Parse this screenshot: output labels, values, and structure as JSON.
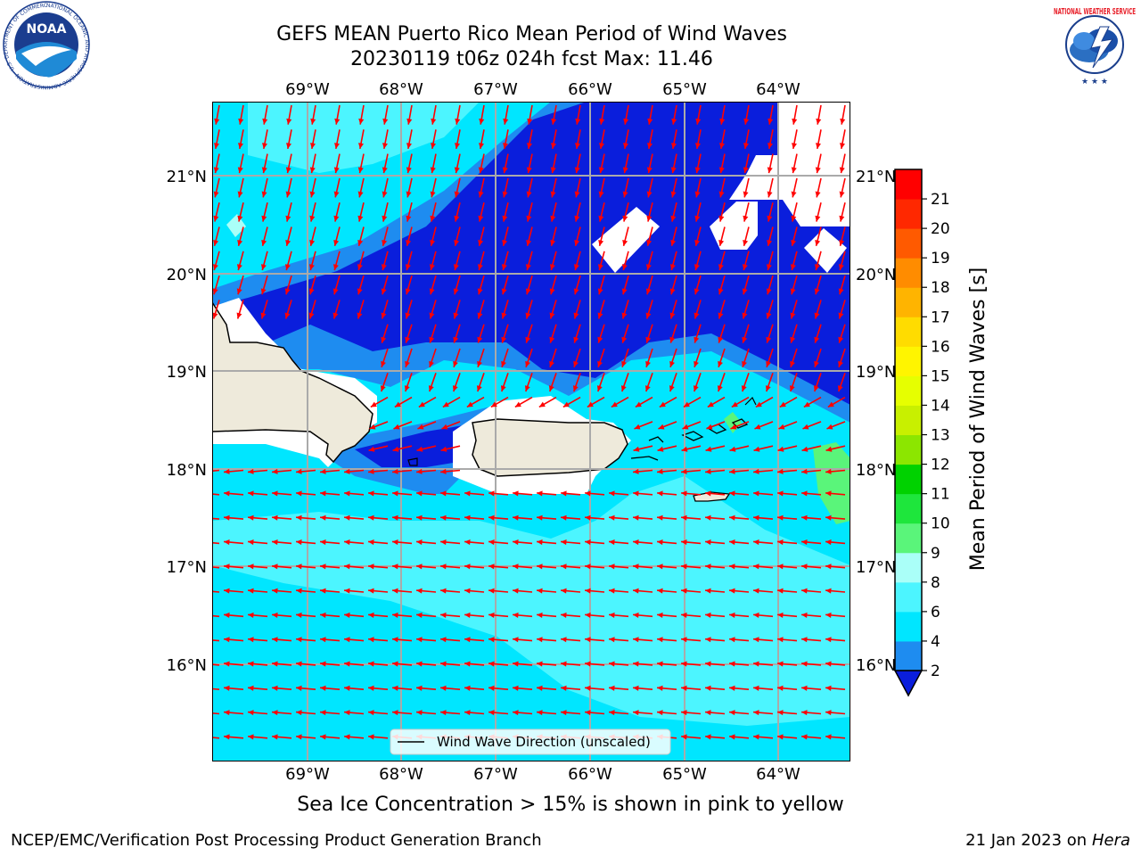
{
  "title": {
    "line1": "GEFS MEAN Puerto Rico Mean Period of Wind Waves",
    "line2": "20230119 t06z 024h fcst   Max: 11.46"
  },
  "map": {
    "lon_labels": [
      "69°W",
      "68°W",
      "67°W",
      "66°W",
      "65°W",
      "64°W"
    ],
    "lat_labels": [
      "21°N",
      "20°N",
      "19°N",
      "18°N",
      "17°N",
      "16°N"
    ],
    "legend_label": "Wind Wave Direction (unscaled)",
    "arrow_color": "#ff0000",
    "land_color": "#eeeadb",
    "islands": [
      "Hispaniola",
      "Puerto Rico",
      "Virgin Islands",
      "St. Croix"
    ]
  },
  "colorbar": {
    "label": "Mean Period of Wind Waves [s]",
    "ticks": [
      "2",
      "4",
      "6",
      "8",
      "9",
      "10",
      "11",
      "12",
      "13",
      "14",
      "15",
      "16",
      "17",
      "18",
      "19",
      "20",
      "21"
    ],
    "colors": [
      "#0a1edc",
      "#1e8cf0",
      "#00e6ff",
      "#4cf5ff",
      "#aafff8",
      "#5af57a",
      "#1ee63c",
      "#00d200",
      "#8ce600",
      "#c8f000",
      "#e6ff00",
      "#fff500",
      "#ffdc00",
      "#ffb400",
      "#ff8c00",
      "#ff5a00",
      "#ff2800",
      "#ff0000"
    ]
  },
  "caption": "Sea Ice Concentration > 15% is shown in pink to yellow",
  "footer": {
    "left": "NCEP/EMC/Verification Post Processing Product Generation Branch",
    "right_prefix": "21 Jan 2023 on ",
    "right_host": "Hera"
  },
  "logos": {
    "noaa_text": "NOAA",
    "nws_text": "NATIONAL WEATHER SERVICE"
  }
}
